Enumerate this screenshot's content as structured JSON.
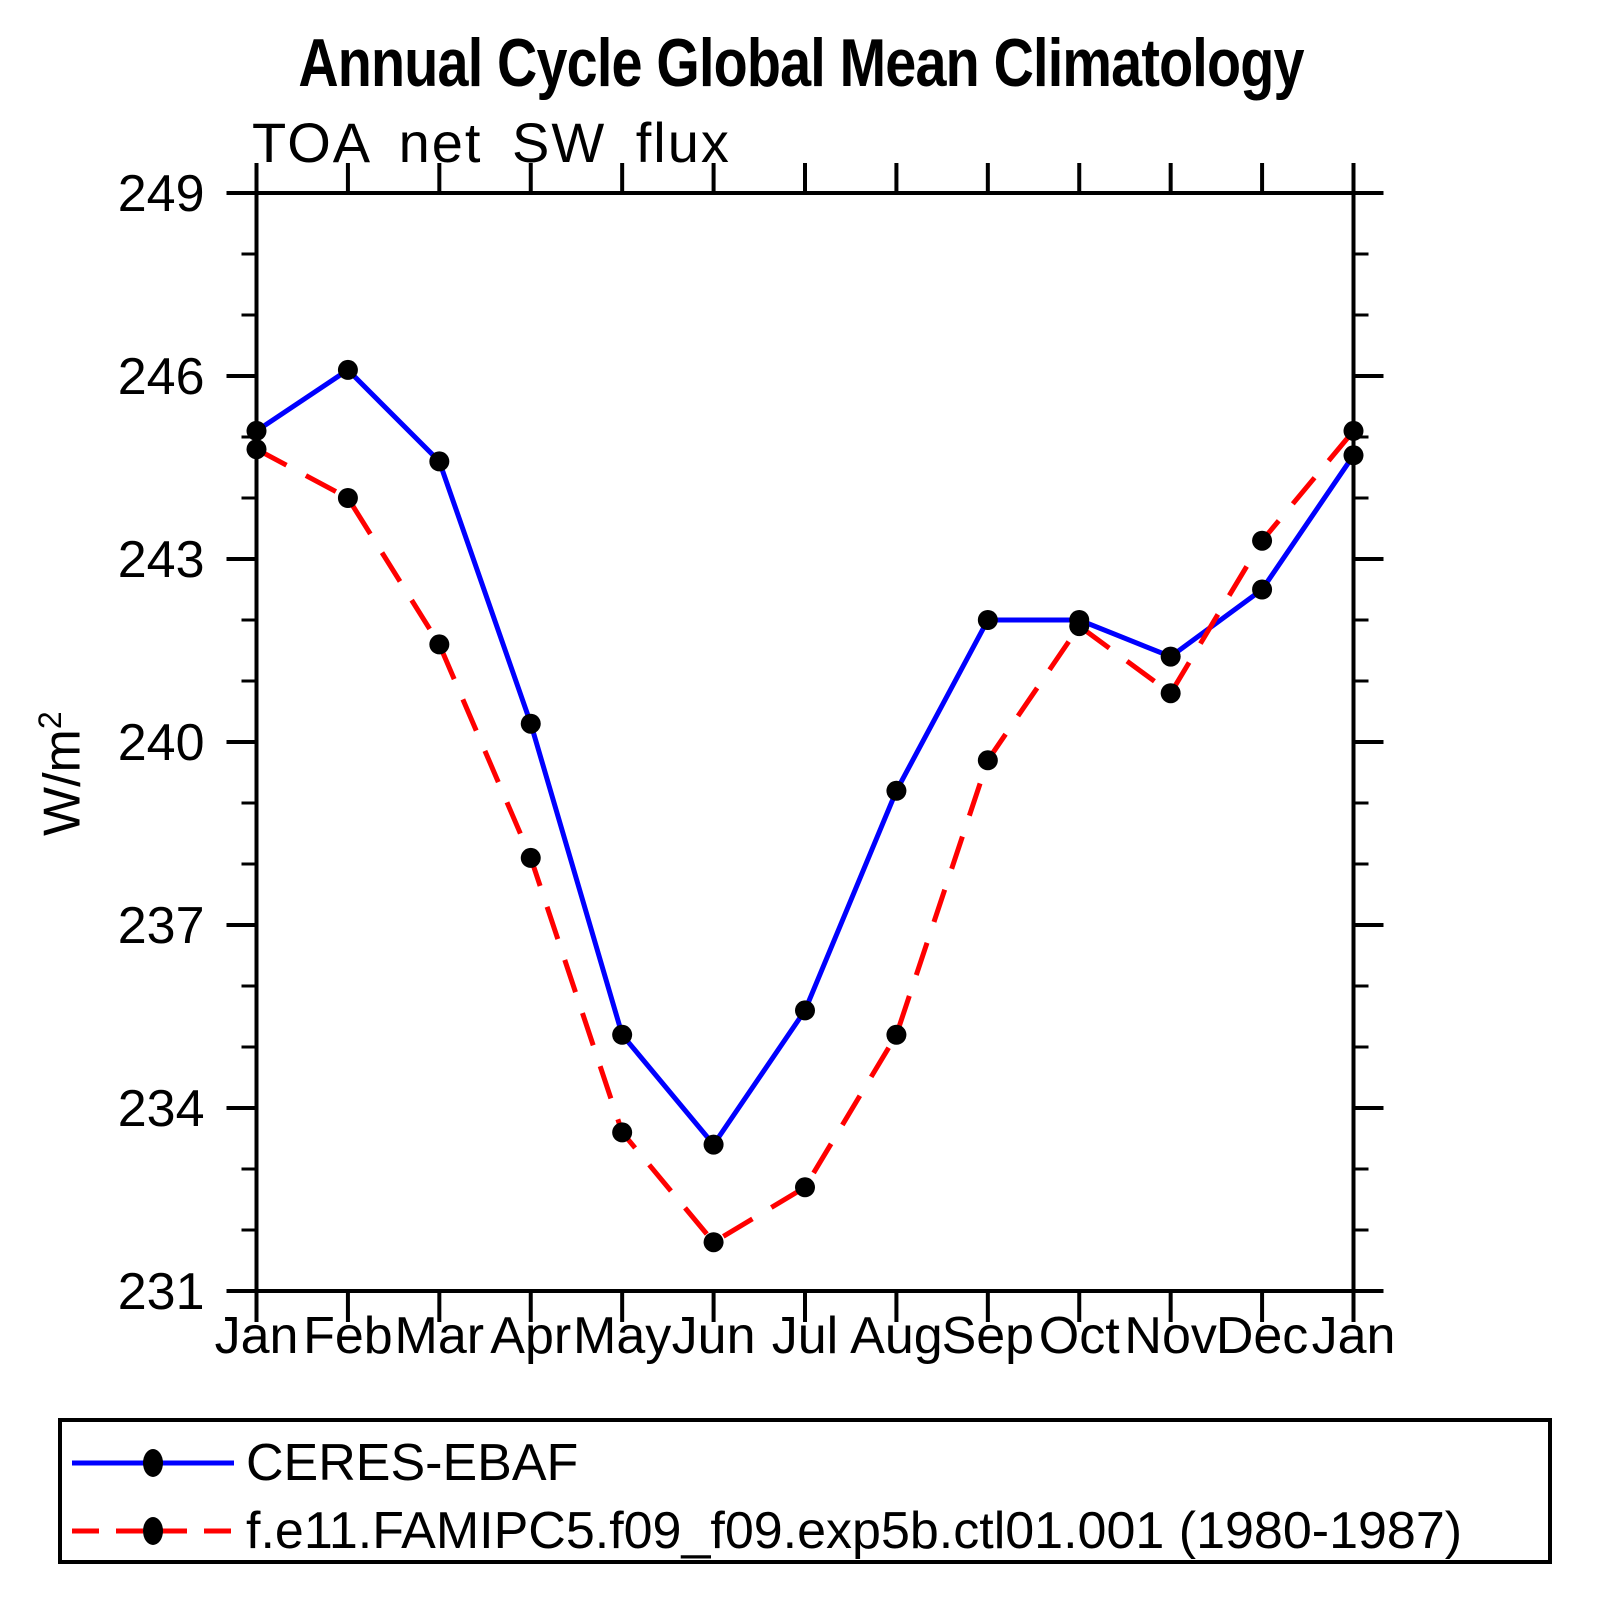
{
  "chart_data": {
    "type": "line",
    "title": "Annual Cycle Global Mean Climatology",
    "subtitle": "TOA net SW flux",
    "ylabel": "W/m²",
    "ylabel_main": "W/m",
    "ylabel_sup": "2",
    "xlabel": "",
    "categories": [
      "Jan",
      "Feb",
      "Mar",
      "Apr",
      "May",
      "Jun",
      "Jul",
      "Aug",
      "Sep",
      "Oct",
      "Nov",
      "Dec",
      "Jan"
    ],
    "series": [
      {
        "name": "CERES-EBAF",
        "color": "#0000ff",
        "line_style": "solid",
        "marker": "filled-circle",
        "marker_color": "#000000",
        "values": [
          245.1,
          246.1,
          244.6,
          240.3,
          235.2,
          233.4,
          235.6,
          239.2,
          242.0,
          242.0,
          241.4,
          242.5,
          244.7
        ]
      },
      {
        "name": "f.e11.FAMIPC5.f09_f09.exp5b.ctl01.001 (1980-1987)",
        "color": "#ff0000",
        "line_style": "dashed",
        "marker": "filled-circle",
        "marker_color": "#000000",
        "values": [
          244.8,
          244.0,
          241.6,
          238.1,
          233.6,
          231.8,
          232.7,
          235.2,
          239.7,
          241.9,
          240.8,
          243.3,
          245.1
        ]
      }
    ],
    "ylim": [
      231,
      249
    ],
    "ytick_major": [
      231,
      234,
      237,
      240,
      243,
      246,
      249
    ],
    "ytick_minor_step": 1,
    "grid": false,
    "legend_position": "bottom"
  }
}
